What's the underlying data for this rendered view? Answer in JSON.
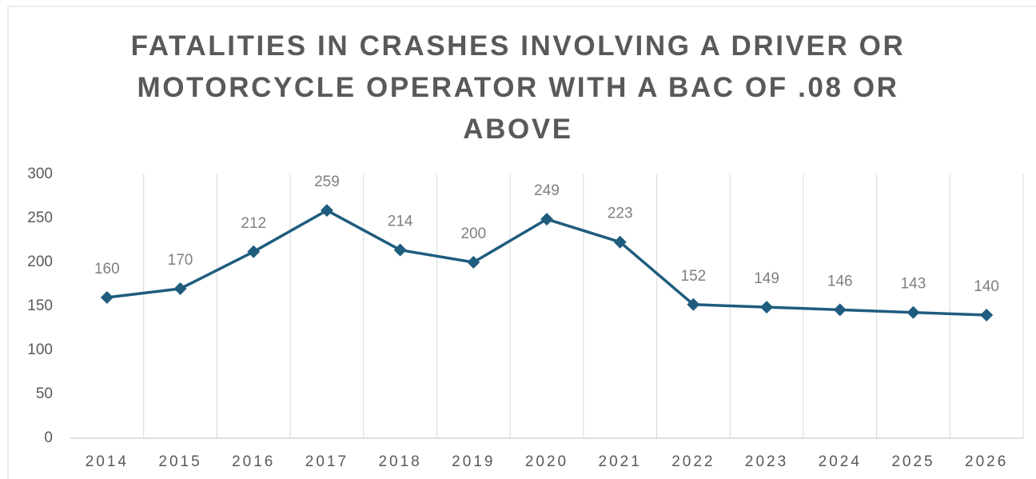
{
  "chart_data": {
    "type": "line",
    "title": "FATALITIES IN CRASHES INVOLVING A DRIVER OR MOTORCYCLE OPERATOR WITH A BAC OF .08 OR ABOVE",
    "categories": [
      "2014",
      "2015",
      "2016",
      "2017",
      "2018",
      "2019",
      "2020",
      "2021",
      "2022",
      "2023",
      "2024",
      "2025",
      "2026"
    ],
    "values": [
      160,
      170,
      212,
      259,
      214,
      200,
      249,
      223,
      152,
      149,
      146,
      143,
      140
    ],
    "color": "#1f5c7e",
    "ylim": [
      0,
      300
    ],
    "yticks": [
      0,
      50,
      100,
      150,
      200,
      250,
      300
    ],
    "grid": "vertical",
    "markers": "diamond",
    "data_labels": true
  }
}
